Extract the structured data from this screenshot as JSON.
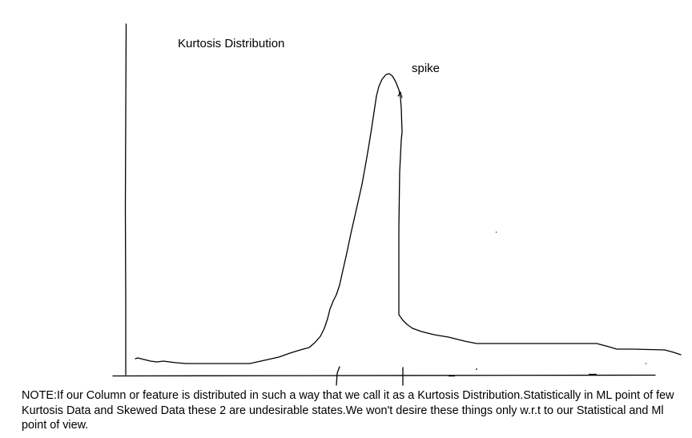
{
  "diagram": {
    "title": "Kurtosis Distribution",
    "peak_label": "spike",
    "note": "NOTE:If our Column or feature is distributed in such a way that we call it as a Kurtosis Distribution.Statistically in ML point of few Kurtosis Data and Skewed Data these 2 are undesirable states.We won't desire these things only w.r.t to our Statistical and Ml point of view.",
    "stroke_color": "#000000",
    "background_color": "#ffffff"
  }
}
